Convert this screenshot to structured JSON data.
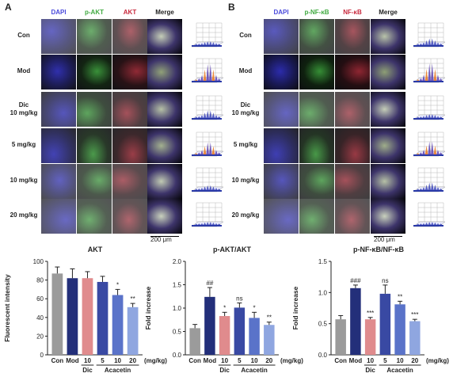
{
  "panels": [
    {
      "letter": "A",
      "channels": [
        "DAPI",
        "p-AKT",
        "AKT",
        "Merge"
      ],
      "channel_colors": [
        "#4a4adc",
        "#3faa3f",
        "#c8283c",
        "#222222"
      ],
      "rows": [
        {
          "line1": "Con",
          "line2": ""
        },
        {
          "line1": "Mod",
          "line2": ""
        },
        {
          "line1": "Dic",
          "line2": "10 mg/kg"
        },
        {
          "line1": "5 mg/kg",
          "line2": ""
        },
        {
          "line1": "10 mg/kg",
          "line2": ""
        },
        {
          "line1": "20 mg/kg",
          "line2": ""
        }
      ],
      "scale": "200 μm",
      "heights": [
        0.15,
        0.85,
        0.35,
        0.6,
        0.2,
        0.1
      ]
    },
    {
      "letter": "B",
      "channels": [
        "DAPI",
        "p-NF-κB",
        "NF-κB",
        "Merge"
      ],
      "channel_colors": [
        "#4a4adc",
        "#3faa3f",
        "#c8283c",
        "#222222"
      ],
      "rows": [
        {
          "line1": "Con",
          "line2": ""
        },
        {
          "line1": "Mod",
          "line2": ""
        },
        {
          "line1": "Dic",
          "line2": "10 mg/kg"
        },
        {
          "line1": "5 mg/kg",
          "line2": ""
        },
        {
          "line1": "10 mg/kg",
          "line2": ""
        },
        {
          "line1": "20 mg/kg",
          "line2": ""
        }
      ],
      "scale": "200 μm",
      "heights": [
        0.3,
        0.9,
        0.15,
        0.65,
        0.35,
        0.1
      ]
    }
  ],
  "chart_data": [
    {
      "type": "bar",
      "title": "AKT",
      "ylabel": "Fluorescent intensity",
      "ylim": [
        0,
        100
      ],
      "yticks": [
        0,
        20,
        40,
        60,
        80,
        100
      ],
      "categories": [
        "Con",
        "Mod",
        "10",
        "5",
        "10",
        "20"
      ],
      "values": [
        87,
        82,
        82,
        78,
        64,
        51
      ],
      "errors": [
        7,
        10,
        7,
        6,
        6,
        4
      ],
      "colors": [
        "#9b9b9b",
        "#232f7a",
        "#e08b8d",
        "#3949a3",
        "#5a73c9",
        "#8fa6e0"
      ],
      "annotations": [
        "",
        "",
        "",
        "",
        "*",
        "**"
      ],
      "group_labels": [
        {
          "text": "Dic",
          "from": 2,
          "to": 2
        },
        {
          "text": "Acacetin",
          "from": 3,
          "to": 5
        }
      ],
      "unit": "(mg/kg)"
    },
    {
      "type": "bar",
      "title": "p-AKT/AKT",
      "ylabel": "Fold increase",
      "ylim": [
        0,
        2.0
      ],
      "yticks": [
        0.0,
        0.5,
        1.0,
        1.5,
        2.0
      ],
      "categories": [
        "Con",
        "Mod",
        "10",
        "5",
        "10",
        "20"
      ],
      "values": [
        0.57,
        1.24,
        0.83,
        1.01,
        0.79,
        0.64
      ],
      "errors": [
        0.08,
        0.2,
        0.08,
        0.1,
        0.12,
        0.06
      ],
      "colors": [
        "#9b9b9b",
        "#232f7a",
        "#e08b8d",
        "#3949a3",
        "#5a73c9",
        "#8fa6e0"
      ],
      "annotations": [
        "",
        "##",
        "*",
        "ns",
        "*",
        "**"
      ],
      "group_labels": [
        {
          "text": "Dic",
          "from": 2,
          "to": 2
        },
        {
          "text": "Acacetin",
          "from": 3,
          "to": 5
        }
      ],
      "unit": "(mg/kg)"
    },
    {
      "type": "bar",
      "title": "p-NF-κB/NF-κB",
      "ylabel": "Fold increase",
      "ylim": [
        0,
        1.5
      ],
      "yticks": [
        0.0,
        0.5,
        1.0,
        1.5
      ],
      "categories": [
        "Con",
        "Mod",
        "10",
        "5",
        "10",
        "20"
      ],
      "values": [
        0.57,
        1.07,
        0.57,
        0.98,
        0.81,
        0.54
      ],
      "errors": [
        0.06,
        0.05,
        0.03,
        0.14,
        0.05,
        0.03
      ],
      "colors": [
        "#9b9b9b",
        "#232f7a",
        "#e08b8d",
        "#3949a3",
        "#5a73c9",
        "#8fa6e0"
      ],
      "annotations": [
        "",
        "###",
        "***",
        "ns",
        "**",
        "***"
      ],
      "group_labels": [
        {
          "text": "Dic",
          "from": 2,
          "to": 2
        },
        {
          "text": "Acacetin",
          "from": 3,
          "to": 5
        }
      ],
      "unit": "(mg/kg)"
    }
  ]
}
